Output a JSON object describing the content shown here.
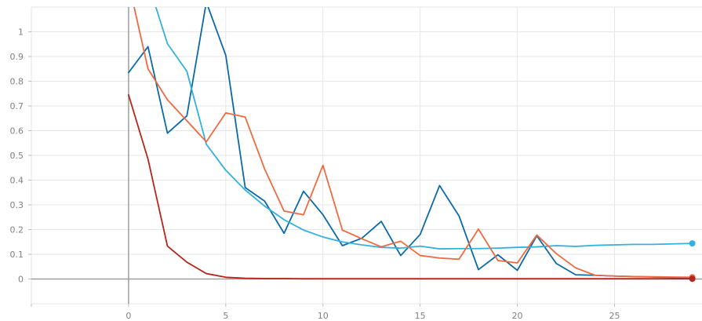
{
  "chart_data": {
    "type": "line",
    "title": "",
    "xlabel": "",
    "ylabel": "",
    "xlim": [
      -5,
      29.5
    ],
    "ylim": [
      -0.1,
      1.1
    ],
    "xticks": [
      0,
      5,
      10,
      15,
      20,
      25
    ],
    "yticks": [
      0,
      0.1,
      0.2,
      0.3,
      0.4,
      0.5,
      0.6,
      0.7,
      0.8,
      0.9,
      1
    ],
    "grid": true,
    "legend": "none",
    "series": [
      {
        "color": "#0a6aa8",
        "end_marker": false,
        "x": [
          0,
          1,
          2,
          3,
          4,
          5,
          6,
          7,
          8,
          9,
          10,
          11,
          12,
          13,
          14,
          15,
          16,
          17,
          18,
          19,
          20,
          21,
          22,
          23,
          24,
          25,
          26,
          27,
          28,
          29
        ],
        "values": [
          0.835,
          0.94,
          0.59,
          0.66,
          1.12,
          0.905,
          0.37,
          0.315,
          0.185,
          0.355,
          0.26,
          0.135,
          0.165,
          0.233,
          0.095,
          0.18,
          0.378,
          0.255,
          0.038,
          0.098,
          0.035,
          0.175,
          0.063,
          0.017,
          0.015,
          0.012,
          0.01,
          0.008,
          0.006,
          0.005
        ]
      },
      {
        "color": "#33b0e0",
        "end_marker": true,
        "x": [
          1,
          2,
          3,
          4,
          5,
          6,
          7,
          8,
          9,
          10,
          11,
          12,
          13,
          14,
          15,
          16,
          17,
          18,
          19,
          20,
          21,
          22,
          23,
          24,
          25,
          26,
          27,
          28,
          29
        ],
        "values": [
          1.2,
          0.952,
          0.84,
          0.545,
          0.44,
          0.36,
          0.295,
          0.24,
          0.198,
          0.17,
          0.15,
          0.138,
          0.128,
          0.125,
          0.133,
          0.122,
          0.123,
          0.123,
          0.125,
          0.128,
          0.13,
          0.135,
          0.132,
          0.136,
          0.138,
          0.14,
          0.14,
          0.142,
          0.144
        ]
      },
      {
        "color": "#f06a40",
        "end_marker": true,
        "x": [
          0,
          1,
          2,
          3,
          4,
          5,
          6,
          7,
          8,
          9,
          10,
          11,
          12,
          13,
          14,
          15,
          16,
          17,
          18,
          19,
          20,
          21,
          22,
          23,
          24,
          25,
          26,
          27,
          28,
          29
        ],
        "values": [
          1.2,
          0.85,
          0.725,
          0.64,
          0.555,
          0.672,
          0.655,
          0.445,
          0.275,
          0.26,
          0.46,
          0.198,
          0.163,
          0.13,
          0.153,
          0.095,
          0.085,
          0.08,
          0.202,
          0.075,
          0.065,
          0.178,
          0.103,
          0.045,
          0.015,
          0.012,
          0.01,
          0.009,
          0.008,
          0.007
        ]
      },
      {
        "color": "#b8251a",
        "end_marker": true,
        "x": [
          0,
          1,
          2,
          3,
          4,
          5,
          6,
          7,
          8,
          9,
          10,
          11,
          12,
          13,
          14,
          15,
          16,
          17,
          18,
          19,
          20,
          21,
          22,
          23,
          24,
          25,
          26,
          27,
          28,
          29
        ],
        "values": [
          0.745,
          0.485,
          0.133,
          0.068,
          0.022,
          0.007,
          0.003,
          0.002,
          0.002,
          0.001,
          0.001,
          0.001,
          0.001,
          0.001,
          0.001,
          0.001,
          0.001,
          0.001,
          0.001,
          0.001,
          0.001,
          0.001,
          0.001,
          0.001,
          0.001,
          0.001,
          0.001,
          0.001,
          0.001,
          0.001
        ]
      }
    ]
  }
}
